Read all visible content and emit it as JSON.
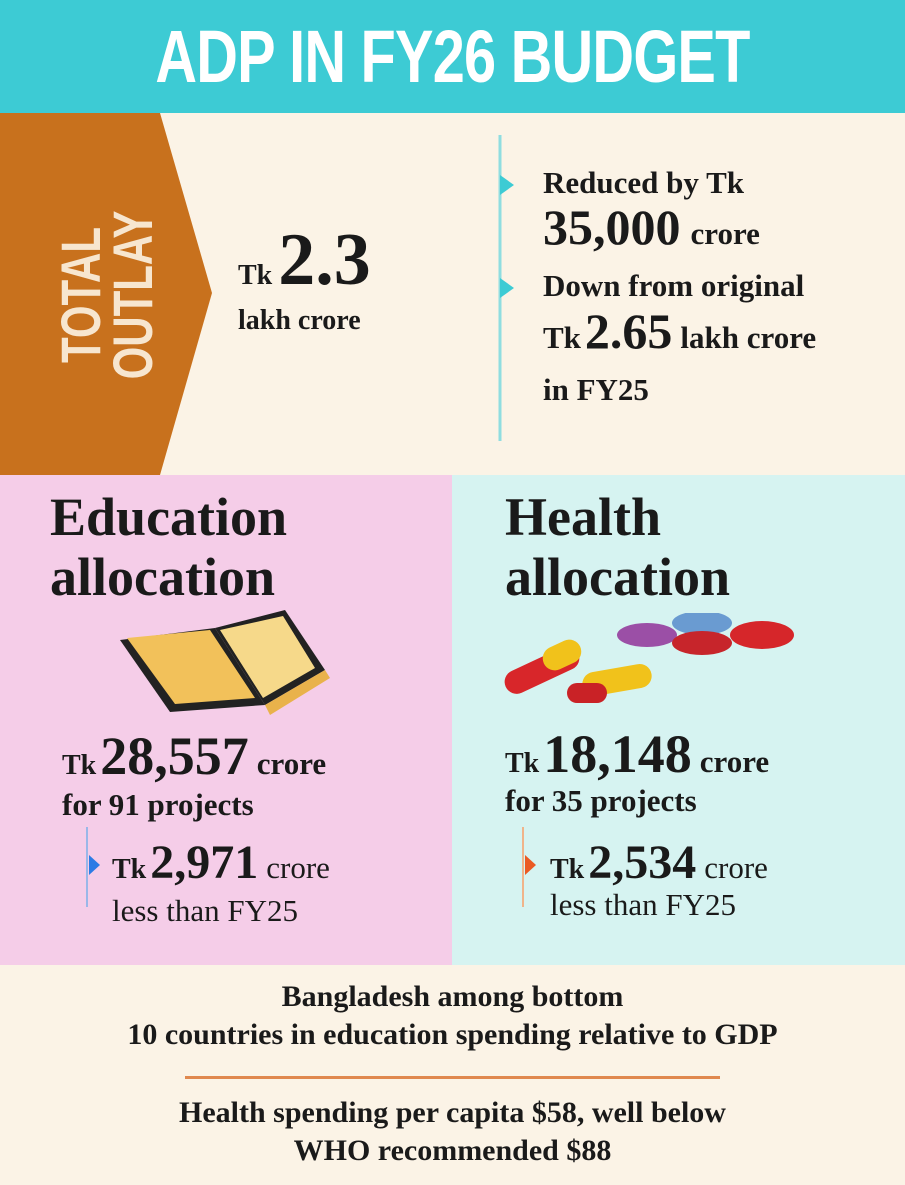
{
  "header": {
    "title": "ADP IN FY26 BUDGET"
  },
  "total_outlay": {
    "label": [
      "TOTAL",
      "OUTLAY"
    ],
    "prefix": "Tk",
    "amount": "2.3",
    "unit": "lakh crore",
    "reduction": {
      "line1": "Reduced by Tk",
      "amount": "35,000",
      "unit": "crore"
    },
    "original": {
      "line1": "Down from original",
      "prefix": "Tk",
      "amount": "2.65",
      "unit": "lakh crore",
      "line3": "in FY25"
    }
  },
  "education": {
    "title": [
      "Education",
      "allocation"
    ],
    "prefix": "Tk",
    "amount": "28,557",
    "unit": "crore",
    "projects": "for 91 projects",
    "change": {
      "prefix": "Tk",
      "amount": "2,971",
      "unit": "crore",
      "note": "less than FY25"
    }
  },
  "health": {
    "title": [
      "Health",
      "allocation"
    ],
    "prefix": "Tk",
    "amount": "18,148",
    "unit": "crore",
    "projects": "for 35 projects",
    "change": {
      "prefix": "Tk",
      "amount": "2,534",
      "unit": "crore",
      "note": "less than FY25"
    }
  },
  "footer": {
    "notes": [
      [
        "Bangladesh among bottom",
        "10 countries in education spending relative to GDP"
      ],
      [
        "Health spending per capita $58, well below",
        "WHO recommended $88"
      ]
    ]
  }
}
